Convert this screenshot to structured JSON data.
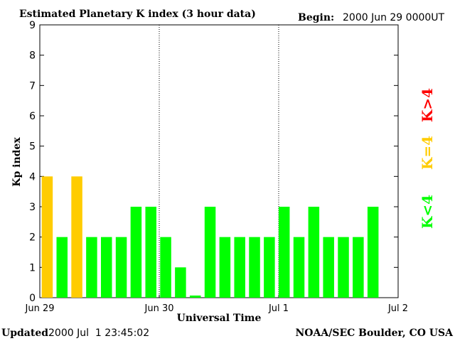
{
  "header": {
    "title": "Estimated Planetary K index (3 hour data)",
    "begin_label": "Begin:",
    "begin_value": "2000 Jun 29 0000UT"
  },
  "footer": {
    "updated_label": "Updated",
    "updated_value": "2000 Jul  1 23:45:02",
    "source": "NOAA/SEC Boulder, CO USA"
  },
  "legend": {
    "items": [
      {
        "label": "K<4",
        "color": "#00ff00"
      },
      {
        "label": "K=4",
        "color": "#ffcc00"
      },
      {
        "label": "K>4",
        "color": "#ff0000"
      }
    ]
  },
  "colors": {
    "low": "#00ff00",
    "equal": "#ffcc00",
    "high": "#ff0000",
    "axis": "#000000"
  },
  "chart_data": {
    "type": "bar",
    "xlabel": "Universal Time",
    "ylabel": "Kp index",
    "ylim": [
      0,
      9
    ],
    "yticks": [
      0,
      1,
      2,
      3,
      4,
      5,
      6,
      7,
      8,
      9
    ],
    "xticks": [
      "Jun 29",
      "Jun 30",
      "Jul 1",
      "Jul 2"
    ],
    "day_separators": [
      "Jun 30",
      "Jul 1"
    ],
    "bar_interval_hours": 3,
    "values": [
      4,
      2,
      4,
      2,
      2,
      2,
      3,
      3,
      2,
      1,
      0.07,
      3,
      2,
      2,
      2,
      2,
      3,
      2,
      3,
      2,
      2,
      2,
      3
    ]
  }
}
